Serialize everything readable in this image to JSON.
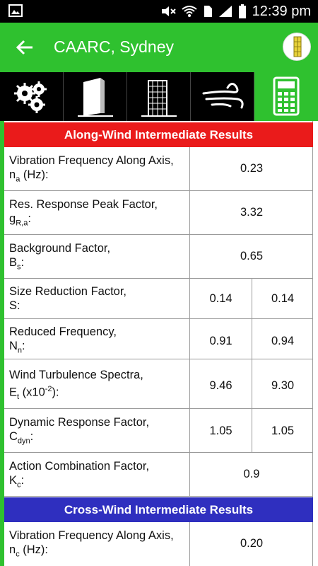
{
  "status_bar": {
    "time": "12:39 pm"
  },
  "app_bar": {
    "title": "CAARC, Sydney"
  },
  "tabs": [
    {
      "icon": "gears-icon"
    },
    {
      "icon": "building-icon"
    },
    {
      "icon": "tower-icon"
    },
    {
      "icon": "wind-icon"
    },
    {
      "icon": "calculator-icon"
    }
  ],
  "sections": {
    "along": {
      "title": "Along-Wind Intermediate Results",
      "rows": [
        {
          "label": "Vibration Frequency Along Axis,",
          "sym": "n",
          "sub": "a",
          "suffix": " (Hz):",
          "value": "0.23"
        },
        {
          "label": "Res. Response Peak Factor,",
          "sym": "g",
          "sub": "R,a",
          "suffix": ":",
          "value": "3.32"
        },
        {
          "label": "Background Factor,",
          "sym": "B",
          "sub": "s",
          "suffix": ":",
          "value": "0.65"
        },
        {
          "label": "Size Reduction Factor,",
          "sym": "S",
          "sub": "",
          "suffix": ":",
          "v1": "0.14",
          "v2": "0.14"
        },
        {
          "label": "Reduced Frequency,",
          "sym": "N",
          "sub": "n",
          "suffix": ":",
          "v1": "0.91",
          "v2": "0.94"
        },
        {
          "label": "Wind Turbulence Spectra,",
          "sym": "E",
          "sub": "t",
          "suffix_pre": " (x10",
          "sup": "-2",
          "suffix": "):",
          "v1": "9.46",
          "v2": "9.30"
        },
        {
          "label": "Dynamic Response Factor,",
          "sym": "C",
          "sub": "dyn",
          "suffix": ":",
          "v1": "1.05",
          "v2": "1.05"
        },
        {
          "label": "Action Combination Factor,",
          "sym": "K",
          "sub": "c",
          "suffix": ":",
          "value": "0.9"
        }
      ]
    },
    "cross": {
      "title": "Cross-Wind Intermediate Results",
      "rows": [
        {
          "label": "Vibration Frequency Along Axis,",
          "sym": "n",
          "sub": "c",
          "suffix": " (Hz):",
          "value": "0.20"
        }
      ]
    }
  },
  "colors": {
    "green": "#2fc12f",
    "red": "#ea1b1b",
    "blue": "#2f2fbf"
  }
}
